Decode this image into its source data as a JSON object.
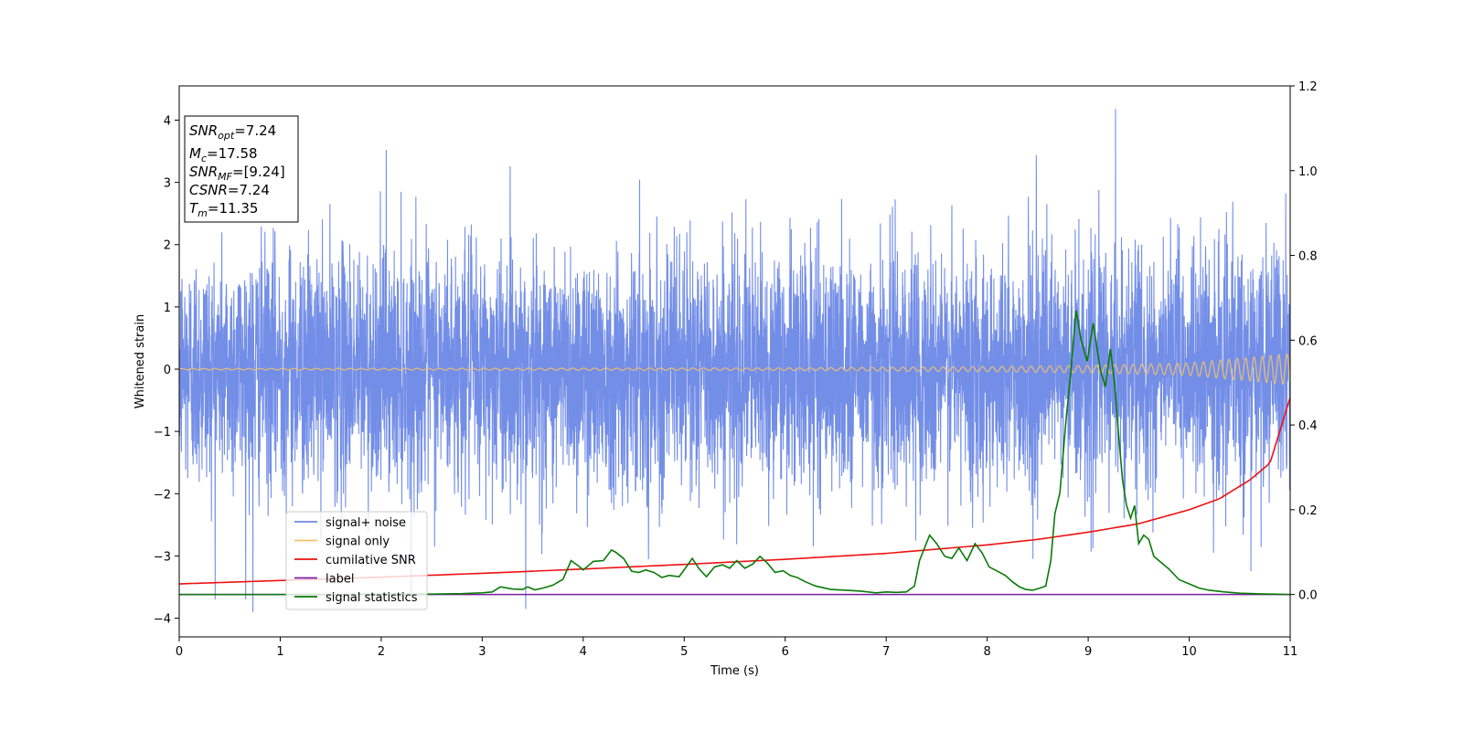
{
  "chart_data": {
    "type": "line",
    "xlabel": "Time (s)",
    "ylabel": "Whitened strain",
    "xlim": [
      0,
      11
    ],
    "ylim_left": [
      -4.3,
      4.55
    ],
    "ylim_right": [
      -0.1,
      1.2
    ],
    "xticks": [
      "0",
      "1",
      "2",
      "3",
      "4",
      "5",
      "6",
      "7",
      "8",
      "9",
      "10",
      "11"
    ],
    "yticks_left": [
      "−4",
      "−3",
      "−2",
      "−1",
      "0",
      "1",
      "2",
      "3",
      "4"
    ],
    "yticks_right": [
      "0.0",
      "0.2",
      "0.4",
      "0.6",
      "0.8",
      "1.0",
      "1.2"
    ],
    "grid": false,
    "legend": {
      "placement": "lower-left",
      "entries": [
        {
          "name": "signal+ noise",
          "color": "#6b88e6"
        },
        {
          "name": "signal only",
          "color": "#f5c26b"
        },
        {
          "name": "cumilative SNR",
          "color": "#ee1111"
        },
        {
          "name": "label",
          "color": "#7a1fa2"
        },
        {
          "name": "signal statistics",
          "color": "#0a7a0a"
        }
      ]
    },
    "info_box": {
      "placement": "top-left",
      "lines": [
        {
          "base": "SNR",
          "sub": "opt",
          "value": "=7.24"
        },
        {
          "base": "M",
          "sub": "c",
          "value": "=17.58"
        },
        {
          "base": "SNR",
          "sub": "MF",
          "value": "=[9.24]"
        },
        {
          "base": "CSNR",
          "sub": "",
          "value": "=7.24"
        },
        {
          "base": "T",
          "sub": "m",
          "value": "=11.35"
        }
      ]
    },
    "series": [
      {
        "name": "signal+ noise",
        "axis": "left",
        "color": "#6b88e6",
        "description": "dense whitened noise, spread roughly between -2.5 and 2.5 with spikes to about -3.9 and 4.2",
        "envelope_sigma": 1.0,
        "peaks": [
          {
            "x": 9.27,
            "y": 4.18
          },
          {
            "x": 0.73,
            "y": -3.9
          },
          {
            "x": 2.05,
            "y": 3.52
          },
          {
            "x": 3.43,
            "y": -3.85
          }
        ]
      },
      {
        "name": "signal only",
        "axis": "left",
        "color": "#f5c26b",
        "description": "chirp oscillation around 0 with growing amplitude",
        "amplitude": [
          [
            0,
            0.01
          ],
          [
            6,
            0.02
          ],
          [
            8,
            0.04
          ],
          [
            9,
            0.06
          ],
          [
            10,
            0.1
          ],
          [
            11,
            0.25
          ]
        ]
      },
      {
        "name": "cumilative SNR",
        "axis": "right",
        "color": "#ee1111",
        "x": [
          0,
          1,
          2,
          3,
          4,
          5,
          6,
          7,
          8,
          8.5,
          9,
          9.5,
          10,
          10.3,
          10.6,
          10.8,
          11
        ],
        "y": [
          0.025,
          0.033,
          0.041,
          0.05,
          0.06,
          0.071,
          0.083,
          0.097,
          0.117,
          0.13,
          0.147,
          0.167,
          0.2,
          0.226,
          0.27,
          0.31,
          0.465
        ]
      },
      {
        "name": "label",
        "axis": "right",
        "color": "#7a1fa2",
        "x": [
          0,
          11
        ],
        "y": [
          0,
          0
        ]
      },
      {
        "name": "signal statistics",
        "axis": "right",
        "color": "#0a7a0a",
        "x": [
          0,
          0.5,
          1,
          1.5,
          2,
          2.5,
          2.8,
          3.0,
          3.1,
          3.18,
          3.3,
          3.4,
          3.45,
          3.52,
          3.6,
          3.7,
          3.8,
          3.88,
          3.95,
          4.0,
          4.1,
          4.2,
          4.28,
          4.32,
          4.4,
          4.48,
          4.55,
          4.62,
          4.7,
          4.78,
          4.85,
          4.95,
          5.02,
          5.08,
          5.15,
          5.22,
          5.3,
          5.38,
          5.45,
          5.52,
          5.6,
          5.68,
          5.75,
          5.82,
          5.9,
          5.98,
          6.05,
          6.12,
          6.2,
          6.3,
          6.45,
          6.6,
          6.75,
          6.9,
          7.0,
          7.1,
          7.2,
          7.28,
          7.33,
          7.38,
          7.43,
          7.5,
          7.58,
          7.65,
          7.72,
          7.8,
          7.88,
          7.95,
          8.02,
          8.1,
          8.18,
          8.25,
          8.32,
          8.38,
          8.45,
          8.52,
          8.58,
          8.63,
          8.67,
          8.72,
          8.78,
          8.83,
          8.88,
          8.93,
          8.99,
          9.05,
          9.12,
          9.17,
          9.22,
          9.26,
          9.3,
          9.34,
          9.38,
          9.42,
          9.46,
          9.5,
          9.55,
          9.6,
          9.65,
          9.7,
          9.8,
          9.9,
          10.0,
          10.1,
          10.2,
          10.35,
          10.5,
          10.7,
          10.9,
          11.0
        ],
        "y": [
          0.0,
          0.0,
          0.0,
          0.0,
          0.001,
          0.001,
          0.002,
          0.004,
          0.006,
          0.018,
          0.013,
          0.012,
          0.018,
          0.011,
          0.015,
          0.022,
          0.036,
          0.08,
          0.068,
          0.058,
          0.078,
          0.08,
          0.105,
          0.1,
          0.085,
          0.055,
          0.052,
          0.058,
          0.052,
          0.04,
          0.045,
          0.042,
          0.065,
          0.085,
          0.06,
          0.042,
          0.065,
          0.07,
          0.062,
          0.08,
          0.062,
          0.072,
          0.09,
          0.075,
          0.052,
          0.056,
          0.045,
          0.04,
          0.03,
          0.02,
          0.012,
          0.01,
          0.008,
          0.004,
          0.006,
          0.005,
          0.006,
          0.02,
          0.08,
          0.11,
          0.14,
          0.12,
          0.09,
          0.085,
          0.11,
          0.08,
          0.12,
          0.098,
          0.065,
          0.055,
          0.045,
          0.03,
          0.018,
          0.012,
          0.01,
          0.015,
          0.02,
          0.08,
          0.19,
          0.24,
          0.41,
          0.53,
          0.67,
          0.6,
          0.55,
          0.64,
          0.53,
          0.49,
          0.58,
          0.5,
          0.38,
          0.27,
          0.21,
          0.18,
          0.21,
          0.12,
          0.14,
          0.13,
          0.09,
          0.08,
          0.06,
          0.035,
          0.025,
          0.015,
          0.01,
          0.006,
          0.003,
          0.0015,
          0.0005,
          0.0
        ]
      }
    ]
  }
}
